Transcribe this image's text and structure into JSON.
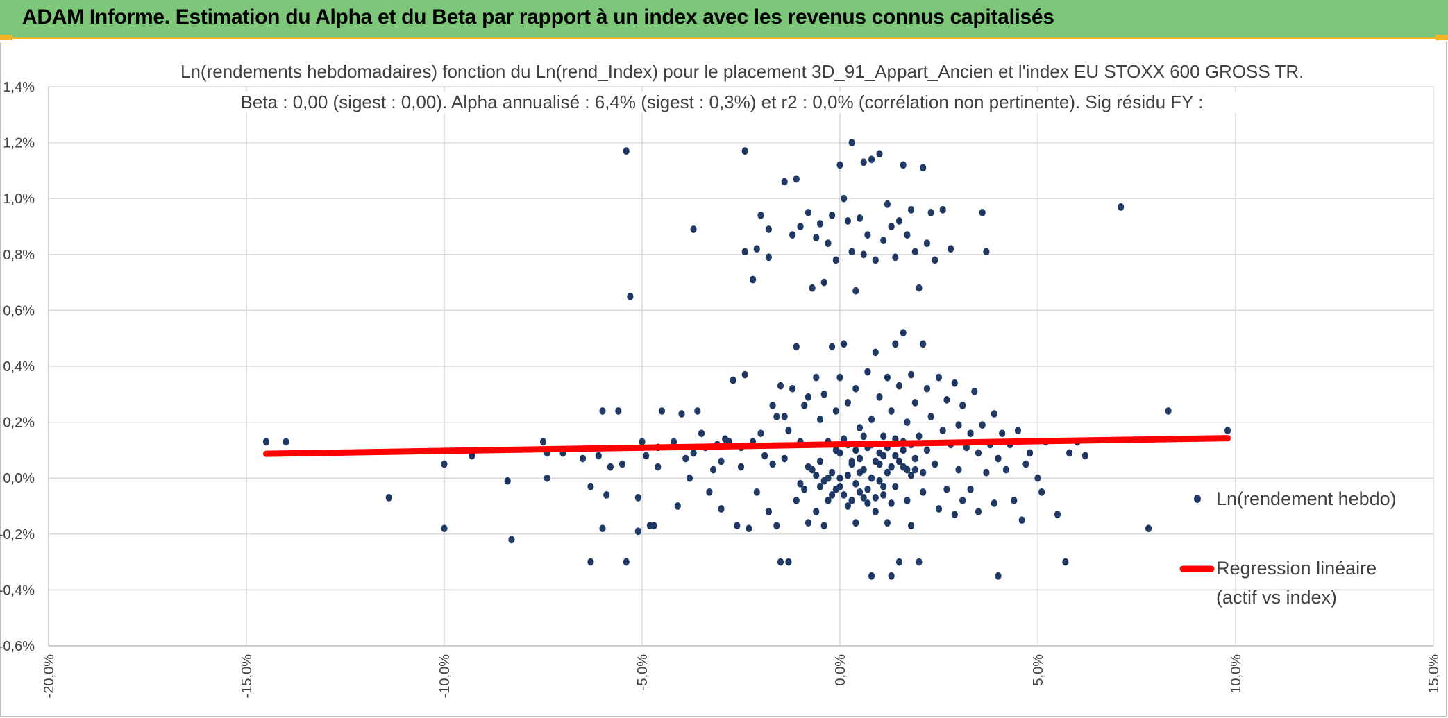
{
  "header": {
    "title": "ADAM Informe. Estimation du Alpha et du Beta par rapport à un index avec les revenus connus capitalisés",
    "bg_color": "#7dc67a",
    "accent_color": "#f0b429"
  },
  "chart_data": {
    "type": "scatter",
    "title": "Ln(rendements hebdomadaires) fonction du Ln(rend_Index) pour le placement 3D_91_Appart_Ancien et l'index EU STOXX 600 GROSS TR.",
    "subtitle": "Beta : 0,00 (sigest : 0,00). Alpha annualisé : 6,4% (sigest : 0,3%) et r2 : 0,0% (corrélation non pertinente). Sig résidu FY :",
    "xlabel": "",
    "ylabel": "",
    "xlim": [
      -0.2,
      0.15
    ],
    "ylim": [
      -0.006,
      0.014
    ],
    "x_ticks": [
      -0.2,
      -0.15,
      -0.1,
      -0.05,
      0.0,
      0.05,
      0.1,
      0.15
    ],
    "y_ticks": [
      -0.006,
      -0.004,
      -0.002,
      0.0,
      0.002,
      0.004,
      0.006,
      0.008,
      0.01,
      0.012,
      0.014
    ],
    "x_tick_labels": [
      "-20,0%",
      "-15,0%",
      "-10,0%",
      "-5,0%",
      "0,0%",
      "5,0%",
      "10,0%",
      "15,0%"
    ],
    "y_tick_labels": [
      "-0,6%",
      "-0,4%",
      "-0,2%",
      "0,0%",
      "0,2%",
      "0,4%",
      "0,6%",
      "0,8%",
      "1,0%",
      "1,2%",
      "1,4%"
    ],
    "grid": true,
    "legend_position": "right",
    "series": [
      {
        "name": "Ln(rendement hebdo)",
        "type": "scatter",
        "color": "#1f3864",
        "points": [
          [
            -0.145,
            0.0013
          ],
          [
            -0.14,
            0.0013
          ],
          [
            -0.114,
            -0.0007
          ],
          [
            -0.1,
            0.0005
          ],
          [
            -0.1,
            -0.0018
          ],
          [
            -0.093,
            0.0008
          ],
          [
            -0.084,
            -0.0001
          ],
          [
            -0.083,
            -0.0022
          ],
          [
            -0.075,
            0.0013
          ],
          [
            -0.074,
            0.0009
          ],
          [
            -0.074,
            0.0
          ],
          [
            -0.07,
            0.0009
          ],
          [
            -0.065,
            0.0007
          ],
          [
            -0.063,
            -0.0003
          ],
          [
            -0.063,
            -0.003
          ],
          [
            -0.061,
            0.0008
          ],
          [
            -0.06,
            0.0024
          ],
          [
            -0.06,
            -0.0018
          ],
          [
            -0.059,
            -0.0006
          ],
          [
            -0.058,
            0.0004
          ],
          [
            -0.056,
            0.0024
          ],
          [
            -0.055,
            0.0005
          ],
          [
            -0.054,
            0.0117
          ],
          [
            -0.054,
            -0.003
          ],
          [
            -0.053,
            0.0065
          ],
          [
            -0.051,
            -0.0007
          ],
          [
            -0.051,
            -0.0019
          ],
          [
            -0.05,
            0.0013
          ],
          [
            -0.049,
            0.0008
          ],
          [
            -0.048,
            -0.0017
          ],
          [
            -0.047,
            -0.0017
          ],
          [
            -0.046,
            0.0004
          ],
          [
            -0.046,
            0.0011
          ],
          [
            -0.045,
            0.0024
          ],
          [
            -0.042,
            0.0013
          ],
          [
            -0.041,
            -0.001
          ],
          [
            -0.04,
            0.0023
          ],
          [
            -0.039,
            0.0007
          ],
          [
            -0.038,
            0.0
          ],
          [
            -0.037,
            0.0009
          ],
          [
            -0.037,
            0.0089
          ],
          [
            -0.036,
            0.0024
          ],
          [
            -0.035,
            0.0016
          ],
          [
            -0.034,
            0.0011
          ],
          [
            -0.033,
            -0.0005
          ],
          [
            -0.032,
            0.0003
          ],
          [
            -0.031,
            0.0012
          ],
          [
            -0.03,
            -0.0011
          ],
          [
            -0.03,
            0.0006
          ],
          [
            -0.029,
            0.0014
          ],
          [
            -0.028,
            0.0013
          ],
          [
            -0.027,
            0.0035
          ],
          [
            -0.026,
            -0.0017
          ],
          [
            -0.025,
            0.0004
          ],
          [
            -0.025,
            0.0011
          ],
          [
            -0.024,
            0.0117
          ],
          [
            -0.024,
            0.0081
          ],
          [
            -0.024,
            0.0037
          ],
          [
            -0.023,
            -0.0018
          ],
          [
            -0.022,
            0.0071
          ],
          [
            -0.022,
            0.0013
          ],
          [
            -0.021,
            0.0082
          ],
          [
            -0.021,
            -0.0005
          ],
          [
            -0.02,
            0.0094
          ],
          [
            -0.02,
            0.0016
          ],
          [
            -0.019,
            0.0008
          ],
          [
            -0.018,
            0.0089
          ],
          [
            -0.018,
            0.0079
          ],
          [
            -0.018,
            -0.0012
          ],
          [
            -0.017,
            0.0026
          ],
          [
            -0.017,
            0.0005
          ],
          [
            -0.016,
            -0.0017
          ],
          [
            -0.016,
            0.0022
          ],
          [
            -0.015,
            0.0033
          ],
          [
            -0.015,
            -0.003
          ],
          [
            -0.014,
            0.0106
          ],
          [
            -0.014,
            0.0022
          ],
          [
            -0.014,
            0.0007
          ],
          [
            -0.013,
            -0.003
          ],
          [
            -0.013,
            0.0017
          ],
          [
            -0.012,
            0.0087
          ],
          [
            -0.012,
            0.0032
          ],
          [
            -0.011,
            0.0107
          ],
          [
            -0.011,
            0.0047
          ],
          [
            -0.011,
            -0.0008
          ],
          [
            -0.01,
            0.009
          ],
          [
            -0.01,
            0.0013
          ],
          [
            -0.009,
            0.0026
          ],
          [
            -0.009,
            -0.0004
          ],
          [
            -0.008,
            0.0095
          ],
          [
            -0.008,
            0.0029
          ],
          [
            -0.008,
            -0.0016
          ],
          [
            -0.007,
            0.0068
          ],
          [
            -0.007,
            0.0003
          ],
          [
            -0.006,
            0.0086
          ],
          [
            -0.006,
            0.0036
          ],
          [
            -0.006,
            -0.0012
          ],
          [
            -0.005,
            0.0091
          ],
          [
            -0.005,
            0.0021
          ],
          [
            -0.005,
            0.0006
          ],
          [
            -0.004,
            0.007
          ],
          [
            -0.004,
            0.003
          ],
          [
            -0.004,
            -0.0017
          ],
          [
            -0.003,
            0.0084
          ],
          [
            -0.003,
            0.0013
          ],
          [
            -0.003,
            0.0
          ],
          [
            -0.002,
            0.0094
          ],
          [
            -0.002,
            0.0047
          ],
          [
            -0.002,
            -0.0006
          ],
          [
            -0.001,
            0.0078
          ],
          [
            -0.001,
            0.0024
          ],
          [
            -0.001,
            0.001
          ],
          [
            0.0,
            0.0112
          ],
          [
            0.0,
            0.0036
          ],
          [
            0.0,
            -0.0003
          ],
          [
            0.001,
            0.01
          ],
          [
            0.001,
            0.0048
          ],
          [
            0.001,
            0.0014
          ],
          [
            0.002,
            0.0092
          ],
          [
            0.002,
            0.0027
          ],
          [
            0.002,
            -0.001
          ],
          [
            0.003,
            0.012
          ],
          [
            0.003,
            0.0081
          ],
          [
            0.003,
            0.0006
          ],
          [
            0.004,
            0.0067
          ],
          [
            0.004,
            0.0032
          ],
          [
            0.004,
            -0.0016
          ],
          [
            0.005,
            0.0093
          ],
          [
            0.005,
            0.0018
          ],
          [
            0.005,
            0.0002
          ],
          [
            0.006,
            0.0113
          ],
          [
            0.006,
            0.008
          ],
          [
            0.006,
            -0.0007
          ],
          [
            0.007,
            0.0087
          ],
          [
            0.007,
            0.0038
          ],
          [
            0.007,
            0.0011
          ],
          [
            0.008,
            0.0114
          ],
          [
            0.008,
            -0.0035
          ],
          [
            0.008,
            0.0021
          ],
          [
            0.009,
            0.0078
          ],
          [
            0.009,
            0.0045
          ],
          [
            0.009,
            -0.0012
          ],
          [
            0.01,
            0.0116
          ],
          [
            0.01,
            0.0029
          ],
          [
            0.01,
            0.0005
          ],
          [
            0.011,
            0.0085
          ],
          [
            0.011,
            0.0015
          ],
          [
            0.011,
            -0.0003
          ],
          [
            0.012,
            0.0098
          ],
          [
            0.012,
            0.0036
          ],
          [
            0.012,
            -0.0016
          ],
          [
            0.013,
            0.009
          ],
          [
            0.013,
            0.0024
          ],
          [
            0.013,
            -0.0035
          ],
          [
            0.014,
            0.0079
          ],
          [
            0.014,
            0.0048
          ],
          [
            0.014,
            0.0008
          ],
          [
            0.015,
            0.0092
          ],
          [
            0.015,
            0.0033
          ],
          [
            0.015,
            -0.003
          ],
          [
            0.016,
            0.0112
          ],
          [
            0.016,
            0.0052
          ],
          [
            0.016,
            0.0013
          ],
          [
            0.017,
            0.0087
          ],
          [
            0.017,
            0.002
          ],
          [
            0.017,
            -0.0008
          ],
          [
            0.018,
            0.0096
          ],
          [
            0.018,
            0.0037
          ],
          [
            0.018,
            -0.0017
          ],
          [
            0.019,
            0.0081
          ],
          [
            0.019,
            0.0027
          ],
          [
            0.019,
            0.0003
          ],
          [
            0.02,
            0.0068
          ],
          [
            0.02,
            0.0015
          ],
          [
            0.02,
            -0.003
          ],
          [
            0.021,
            0.0111
          ],
          [
            0.021,
            0.0048
          ],
          [
            0.021,
            -0.0005
          ],
          [
            0.022,
            0.0084
          ],
          [
            0.022,
            0.0032
          ],
          [
            0.022,
            0.001
          ],
          [
            0.023,
            0.0095
          ],
          [
            0.023,
            0.0022
          ],
          [
            0.024,
            0.0078
          ],
          [
            0.024,
            0.0005
          ],
          [
            0.025,
            0.0036
          ],
          [
            0.025,
            -0.0011
          ],
          [
            0.026,
            0.0096
          ],
          [
            0.026,
            0.0017
          ],
          [
            0.027,
            0.0028
          ],
          [
            0.027,
            -0.0004
          ],
          [
            0.028,
            0.0082
          ],
          [
            0.028,
            0.0012
          ],
          [
            0.029,
            0.0034
          ],
          [
            0.029,
            -0.0013
          ],
          [
            0.03,
            0.0019
          ],
          [
            0.03,
            0.0003
          ],
          [
            0.031,
            0.0026
          ],
          [
            0.031,
            -0.0008
          ],
          [
            0.032,
            0.0011
          ],
          [
            0.033,
            0.0016
          ],
          [
            0.033,
            -0.0004
          ],
          [
            0.034,
            0.0031
          ],
          [
            0.035,
            0.0009
          ],
          [
            0.035,
            -0.0012
          ],
          [
            0.036,
            0.0095
          ],
          [
            0.036,
            0.0019
          ],
          [
            0.037,
            0.0081
          ],
          [
            0.037,
            0.0002
          ],
          [
            0.038,
            0.0012
          ],
          [
            0.039,
            0.0023
          ],
          [
            0.039,
            -0.0009
          ],
          [
            0.04,
            -0.0035
          ],
          [
            0.04,
            0.0007
          ],
          [
            0.041,
            0.0016
          ],
          [
            0.042,
            0.0003
          ],
          [
            0.043,
            0.0012
          ],
          [
            0.044,
            -0.0008
          ],
          [
            0.045,
            0.0017
          ],
          [
            0.046,
            -0.0015
          ],
          [
            0.047,
            0.0005
          ],
          [
            0.048,
            0.0009
          ],
          [
            0.05,
            0.0
          ],
          [
            0.051,
            -0.0005
          ],
          [
            0.052,
            0.0013
          ],
          [
            0.055,
            -0.0013
          ],
          [
            0.057,
            -0.003
          ],
          [
            0.058,
            0.0009
          ],
          [
            0.06,
            0.0013
          ],
          [
            0.062,
            0.0008
          ],
          [
            0.071,
            0.0097
          ],
          [
            0.078,
            -0.0018
          ],
          [
            0.083,
            0.0024
          ],
          [
            0.098,
            0.0017
          ],
          [
            0.0,
            0.0
          ],
          [
            0.002,
            0.0001
          ],
          [
            0.004,
            -0.0002
          ],
          [
            0.006,
            0.0003
          ],
          [
            0.008,
            0.0
          ],
          [
            0.01,
            -0.0001
          ],
          [
            0.012,
            0.0002
          ],
          [
            0.014,
            -0.0003
          ],
          [
            0.016,
            0.0004
          ],
          [
            0.018,
            0.0001
          ],
          [
            -0.002,
            0.0002
          ],
          [
            -0.004,
            -0.0001
          ],
          [
            -0.006,
            0.0001
          ],
          [
            -0.008,
            0.0004
          ],
          [
            -0.01,
            -0.0002
          ],
          [
            0.003,
            0.0005
          ],
          [
            0.005,
            0.0007
          ],
          [
            0.007,
            -0.0004
          ],
          [
            0.009,
            0.0006
          ],
          [
            0.011,
            0.0008
          ],
          [
            0.013,
            0.0004
          ],
          [
            0.015,
            0.0006
          ],
          [
            0.017,
            0.0003
          ],
          [
            0.019,
            0.0007
          ],
          [
            0.021,
            0.0002
          ],
          [
            0.001,
            -0.0006
          ],
          [
            0.003,
            -0.0008
          ],
          [
            0.005,
            -0.0005
          ],
          [
            0.007,
            -0.0009
          ],
          [
            0.009,
            -0.0007
          ],
          [
            0.011,
            -0.0006
          ],
          [
            0.013,
            -0.0009
          ],
          [
            -0.001,
            -0.0004
          ],
          [
            -0.003,
            -0.0008
          ],
          [
            -0.005,
            -0.0003
          ],
          [
            0.0,
            0.0009
          ],
          [
            0.002,
            0.0012
          ],
          [
            0.004,
            0.001
          ],
          [
            0.006,
            0.0015
          ],
          [
            0.008,
            0.0012
          ],
          [
            0.01,
            0.0009
          ],
          [
            0.012,
            0.0011
          ],
          [
            0.014,
            0.0014
          ],
          [
            0.016,
            0.001
          ],
          [
            0.018,
            0.0012
          ]
        ]
      },
      {
        "name": "Regression linéaire (actif vs index)",
        "type": "line",
        "color": "#ff0000",
        "points": [
          [
            -0.145,
            0.00087
          ],
          [
            0.098,
            0.00143
          ]
        ]
      }
    ]
  },
  "legend": {
    "scatter_label": "Ln(rendement hebdo)",
    "line_label_1": "Regression linéaire",
    "line_label_2": "(actif vs index)"
  }
}
